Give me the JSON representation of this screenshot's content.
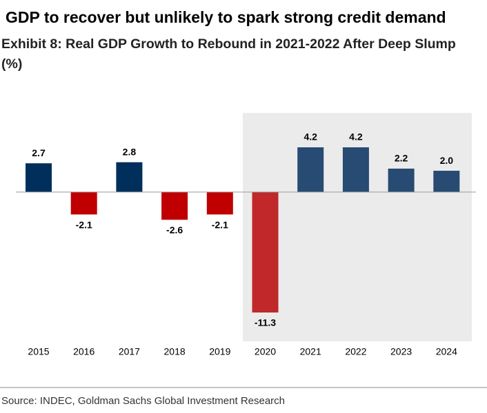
{
  "chart_data": {
    "type": "bar",
    "title": "GDP to recover but unlikely to spark strong credit demand",
    "subtitle": "Exhibit 8: Real GDP Growth to Rebound in 2021-2022 After Deep Slump (%)",
    "categories": [
      "2015",
      "2016",
      "2017",
      "2018",
      "2019",
      "2020",
      "2021",
      "2022",
      "2023",
      "2024"
    ],
    "values": [
      2.7,
      -2.1,
      2.8,
      -2.6,
      -2.1,
      -11.3,
      4.2,
      4.2,
      2.2,
      2.0
    ],
    "value_labels": [
      "2.7",
      "-2.1",
      "2.8",
      "-2.6",
      "-2.1",
      "-11.3",
      "4.2",
      "4.2",
      "2.2",
      "2.0"
    ],
    "colors": [
      "#002f5c",
      "#c00000",
      "#002f5c",
      "#c00000",
      "#c00000",
      "#c0282a",
      "#274b72",
      "#274b72",
      "#274b72",
      "#274b72"
    ],
    "source": "Source: INDEC, Goldman Sachs Global Investment Research"
  }
}
